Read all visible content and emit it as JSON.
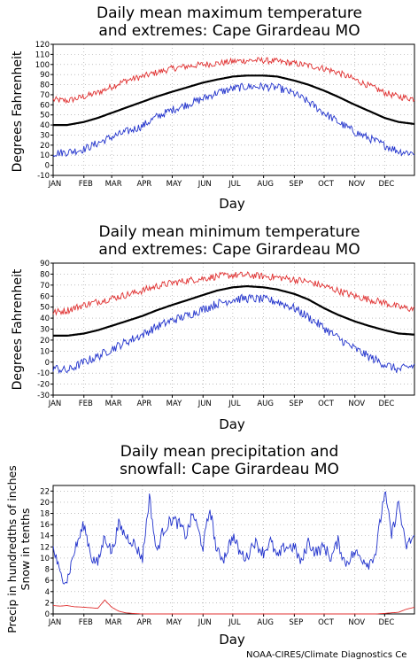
{
  "footer": "NOAA-CIRES/Climate Diagnostics Ce",
  "months": [
    "JAN",
    "FEB",
    "MAR",
    "APR",
    "MAY",
    "JUN",
    "JUL",
    "AUG",
    "SEP",
    "OCT",
    "NOV",
    "DEC"
  ],
  "chart_data": [
    {
      "type": "line",
      "title": [
        "Daily mean maximum temperature",
        "and extremes: Cape Girardeau MO"
      ],
      "xlabel": "Day",
      "ylabel": "Degrees Fahrenheit",
      "ylim": [
        -10,
        120
      ],
      "yticks": [
        -10,
        0,
        10,
        20,
        30,
        40,
        50,
        60,
        70,
        80,
        90,
        100,
        110,
        120
      ],
      "grid": true,
      "colors": {
        "max": "#e03030",
        "mean": "#000000",
        "min": "#2233cc"
      },
      "x_day": [
        1,
        15,
        32,
        46,
        60,
        74,
        91,
        105,
        121,
        135,
        152,
        166,
        182,
        196,
        213,
        227,
        244,
        258,
        274,
        288,
        305,
        319,
        335,
        349,
        365
      ],
      "series": [
        {
          "values": [
            65,
            64,
            68,
            72,
            78,
            84,
            88,
            92,
            96,
            98,
            100,
            101,
            103,
            104,
            104,
            103,
            101,
            99,
            96,
            92,
            85,
            79,
            72,
            68,
            66
          ]
        },
        {
          "values": [
            40,
            40,
            43,
            47,
            52,
            57,
            63,
            68,
            73,
            77,
            82,
            85,
            88,
            89,
            89,
            88,
            84,
            80,
            74,
            68,
            60,
            54,
            47,
            43,
            41
          ]
        },
        {
          "values": [
            12,
            13,
            16,
            22,
            28,
            33,
            39,
            48,
            55,
            60,
            66,
            72,
            76,
            78,
            78,
            77,
            71,
            63,
            52,
            43,
            33,
            27,
            20,
            14,
            12
          ]
        }
      ]
    },
    {
      "type": "line",
      "title": [
        "Daily mean minimum temperature",
        "and extremes: Cape Girardeau MO"
      ],
      "xlabel": "Day",
      "ylabel": "Degrees Fahrenheit",
      "ylim": [
        -30,
        90
      ],
      "yticks": [
        -30,
        -20,
        -10,
        0,
        10,
        20,
        30,
        40,
        50,
        60,
        70,
        80,
        90
      ],
      "grid": true,
      "colors": {
        "max": "#e03030",
        "mean": "#000000",
        "min": "#2233cc"
      },
      "x_day": [
        1,
        15,
        32,
        46,
        60,
        74,
        91,
        105,
        121,
        135,
        152,
        166,
        182,
        196,
        213,
        227,
        244,
        258,
        274,
        288,
        305,
        319,
        335,
        349,
        365
      ],
      "series": [
        {
          "values": [
            45,
            47,
            52,
            55,
            58,
            61,
            65,
            69,
            72,
            74,
            76,
            78,
            79,
            79,
            78,
            77,
            75,
            73,
            69,
            65,
            60,
            57,
            54,
            50,
            48
          ]
        },
        {
          "values": [
            24,
            24,
            26,
            29,
            33,
            37,
            42,
            47,
            52,
            56,
            61,
            65,
            68,
            69,
            68,
            66,
            62,
            57,
            49,
            43,
            37,
            33,
            29,
            26,
            25
          ]
        },
        {
          "values": [
            -5,
            -8,
            0,
            5,
            12,
            18,
            25,
            32,
            38,
            42,
            48,
            53,
            57,
            58,
            57,
            55,
            49,
            41,
            31,
            22,
            12,
            5,
            -2,
            -7,
            -3
          ]
        }
      ]
    },
    {
      "type": "line",
      "title": [
        "Daily mean precipitation and",
        "snowfall: Cape Girardeau MO"
      ],
      "xlabel": "Day",
      "ylabel": [
        "Precip in hundredths of inches",
        "Snow in tenths"
      ],
      "ylim": [
        0,
        23
      ],
      "yticks": [
        0,
        2,
        4,
        6,
        8,
        10,
        12,
        14,
        16,
        18,
        20,
        22
      ],
      "grid": true,
      "colors": {
        "precip": "#2233cc",
        "snow": "#e03030"
      },
      "x_day": [
        1,
        8,
        15,
        22,
        32,
        40,
        46,
        53,
        60,
        67,
        74,
        81,
        91,
        98,
        105,
        112,
        121,
        128,
        135,
        142,
        152,
        159,
        166,
        173,
        182,
        189,
        196,
        203,
        213,
        220,
        227,
        234,
        244,
        251,
        258,
        265,
        274,
        281,
        288,
        295,
        305,
        312,
        319,
        326,
        335,
        342,
        349,
        356,
        365
      ],
      "series": [
        {
          "values": [
            12,
            7,
            6,
            11,
            16,
            10,
            9,
            14,
            11,
            16,
            14,
            13,
            10,
            21,
            11,
            15,
            17,
            16,
            14,
            18,
            12,
            19,
            11,
            10,
            14,
            11,
            10,
            13,
            11,
            13,
            10,
            12,
            12,
            9,
            13,
            11,
            12,
            10,
            13,
            9,
            11,
            10,
            9,
            11,
            22,
            14,
            20,
            12,
            14
          ]
        },
        {
          "values": [
            1.5,
            1.4,
            1.5,
            1.3,
            1.2,
            1.1,
            1.0,
            2.5,
            1.2,
            0.5,
            0.2,
            0.1,
            0,
            0,
            0,
            0,
            0,
            0,
            0,
            0,
            0,
            0,
            0,
            0,
            0,
            0,
            0,
            0,
            0,
            0,
            0,
            0,
            0,
            0,
            0,
            0,
            0,
            0,
            0,
            0,
            0,
            0,
            0,
            0,
            0.1,
            0.2,
            0.3,
            0.8,
            1.2
          ]
        }
      ]
    }
  ]
}
